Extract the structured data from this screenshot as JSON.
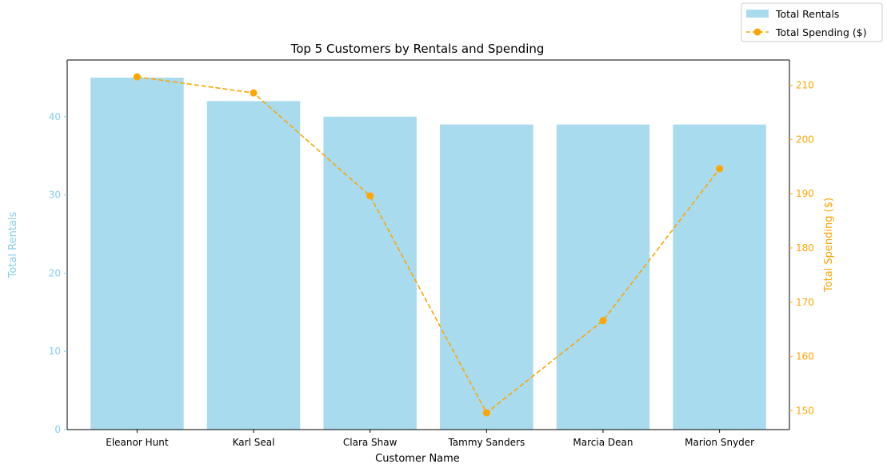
{
  "chart_data": {
    "type": "bar+line",
    "title": "Top 5 Customers by Rentals and Spending",
    "xlabel": "Customer Name",
    "categories": [
      "Eleanor Hunt",
      "Karl Seal",
      "Clara Shaw",
      "Tammy Sanders",
      "Marcia Dean",
      "Marion Snyder"
    ],
    "series": [
      {
        "name": "Total Rentals",
        "type": "bar",
        "axis": "left",
        "values": [
          45,
          42,
          40,
          39,
          39,
          39
        ],
        "color": "#a8dbee"
      },
      {
        "name": "Total Spending ($)",
        "type": "line",
        "axis": "right",
        "values": [
          211.55,
          208.58,
          189.6,
          149.61,
          166.61,
          194.61
        ],
        "color": "#ffa500",
        "linestyle": "dashed",
        "marker": "circle"
      }
    ],
    "y_left": {
      "label": "Total Rentals",
      "color": "#87ceeb",
      "ylim": [
        0,
        47.25
      ],
      "ticks": [
        0,
        10,
        20,
        30,
        40
      ]
    },
    "y_right": {
      "label": "Total Spending ($)",
      "color": "#ffa500",
      "ylim": [
        146.52,
        214.65
      ],
      "ticks": [
        150,
        160,
        170,
        180,
        190,
        200,
        210
      ]
    },
    "legend": {
      "position": "top-right",
      "entries": [
        "Total Rentals",
        "Total Spending ($)"
      ]
    },
    "grid": false
  }
}
